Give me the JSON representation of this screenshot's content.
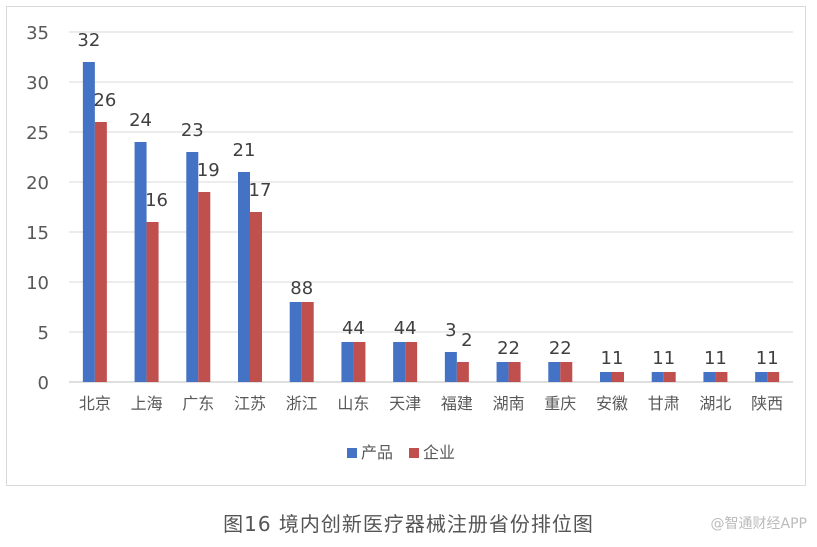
{
  "caption": "图16 境内创新医疗器械注册省份排位图",
  "watermark": "@智通财经APP",
  "chart_data": {
    "type": "bar",
    "title": "",
    "xlabel": "",
    "ylabel": "",
    "ylim": [
      0,
      35
    ],
    "yticks": [
      0,
      5,
      10,
      15,
      20,
      25,
      30,
      35
    ],
    "grid": true,
    "legend_position": "bottom",
    "categories": [
      "北京",
      "上海",
      "广东",
      "江苏",
      "浙江",
      "山东",
      "天津",
      "福建",
      "湖南",
      "重庆",
      "安徽",
      "甘肃",
      "湖北",
      "陕西"
    ],
    "series": [
      {
        "name": "产品",
        "color": "#4472c4",
        "values": [
          32,
          24,
          23,
          21,
          8,
          4,
          4,
          3,
          2,
          2,
          1,
          1,
          1,
          1
        ]
      },
      {
        "name": "企业",
        "color": "#c0504d",
        "values": [
          26,
          16,
          19,
          17,
          8,
          4,
          4,
          2,
          2,
          2,
          1,
          1,
          1,
          1
        ]
      }
    ]
  }
}
